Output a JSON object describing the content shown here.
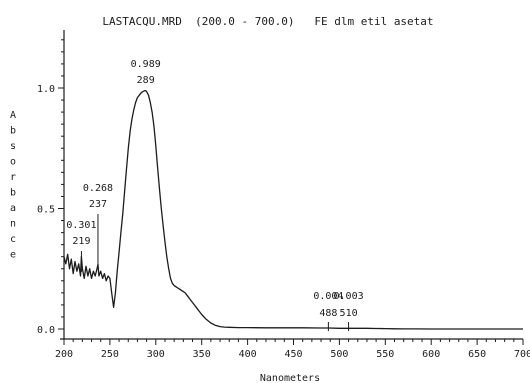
{
  "chart_data": {
    "type": "line",
    "title": "LASTACQU.MRD  (200.0 - 700.0)   FE dlm etil asetat",
    "xlabel": "Nanometers",
    "ylabel": "Absorbance",
    "xlim": [
      200,
      700
    ],
    "ylim": [
      0,
      1.2
    ],
    "xticks": [
      200,
      250,
      300,
      350,
      400,
      450,
      500,
      550,
      600,
      650,
      700
    ],
    "yticks": [
      0.0,
      0.5,
      1.0
    ],
    "ytick_labels": [
      "0.0",
      "0.5",
      "1.0"
    ],
    "grid": false,
    "series": [
      {
        "x": [
          200,
          202,
          204,
          206,
          208,
          210,
          212,
          214,
          216,
          218,
          219,
          220,
          222,
          224,
          226,
          228,
          230,
          232,
          234,
          236,
          237,
          238,
          240,
          242,
          244,
          246,
          248,
          250,
          252,
          254,
          256,
          258,
          260,
          262,
          264,
          266,
          268,
          270,
          272,
          274,
          276,
          278,
          280,
          282,
          284,
          286,
          288,
          289,
          290,
          292,
          294,
          296,
          298,
          300,
          302,
          304,
          306,
          308,
          310,
          312,
          314,
          316,
          318,
          320,
          322,
          324,
          326,
          328,
          330,
          332,
          334,
          336,
          338,
          340,
          342,
          344,
          346,
          348,
          350,
          355,
          360,
          365,
          370,
          375,
          380,
          390,
          400,
          420,
          440,
          460,
          480,
          488,
          500,
          510,
          520,
          530,
          540,
          550,
          560,
          570,
          580,
          600,
          620,
          640,
          660,
          680,
          700
        ],
        "y": [
          0.3,
          0.27,
          0.31,
          0.25,
          0.29,
          0.23,
          0.28,
          0.24,
          0.27,
          0.22,
          0.301,
          0.25,
          0.21,
          0.26,
          0.22,
          0.25,
          0.21,
          0.24,
          0.22,
          0.25,
          0.268,
          0.22,
          0.24,
          0.21,
          0.23,
          0.2,
          0.22,
          0.21,
          0.15,
          0.09,
          0.15,
          0.24,
          0.32,
          0.4,
          0.48,
          0.57,
          0.66,
          0.75,
          0.82,
          0.87,
          0.91,
          0.94,
          0.96,
          0.97,
          0.98,
          0.985,
          0.989,
          0.989,
          0.985,
          0.97,
          0.94,
          0.9,
          0.84,
          0.76,
          0.67,
          0.58,
          0.5,
          0.43,
          0.36,
          0.3,
          0.25,
          0.21,
          0.19,
          0.18,
          0.175,
          0.17,
          0.165,
          0.16,
          0.155,
          0.15,
          0.14,
          0.13,
          0.12,
          0.11,
          0.1,
          0.09,
          0.08,
          0.07,
          0.06,
          0.04,
          0.025,
          0.015,
          0.01,
          0.008,
          0.007,
          0.006,
          0.006,
          0.005,
          0.005,
          0.005,
          0.004,
          0.004,
          0.003,
          0.003,
          0.003,
          0.0028,
          0.0022,
          0.0016,
          0.001,
          0.0006,
          0.0003,
          0.0,
          0.0,
          0.0,
          0.0,
          0.0,
          0.0
        ]
      }
    ],
    "peaks": [
      {
        "x": 219,
        "value_label": "0.301",
        "x_label": "219"
      },
      {
        "x": 237,
        "value_label": "0.268",
        "x_label": "237"
      },
      {
        "x": 289,
        "value_label": "0.989",
        "x_label": "289"
      },
      {
        "x": 488,
        "value_label": "0.004",
        "x_label": "488"
      },
      {
        "x": 510,
        "value_label": "0.003",
        "x_label": "510"
      }
    ],
    "colors": {
      "ink": "#1c1c1c",
      "background": "#ffffff"
    }
  }
}
